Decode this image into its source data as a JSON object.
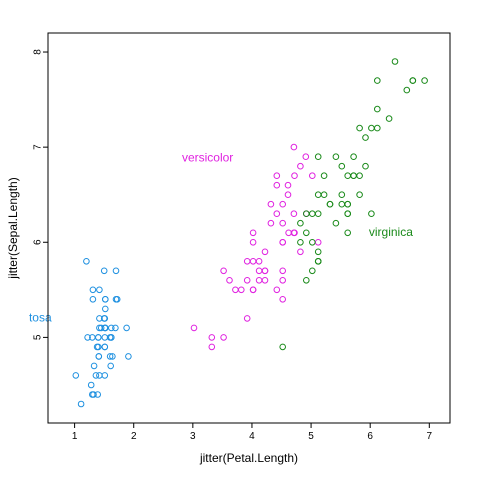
{
  "chart_data": {
    "type": "scatter",
    "title": "",
    "xlabel": "jitter(Petal.Length)",
    "ylabel": "jitter(Sepal.Length)",
    "xlim": [
      0.55,
      7.35
    ],
    "ylim": [
      4.1,
      8.2
    ],
    "xticks": [
      1,
      2,
      3,
      4,
      5,
      6,
      7
    ],
    "yticks": [
      5,
      6,
      7,
      8
    ],
    "grid": false,
    "legend": "none",
    "series": [
      {
        "color": "#1e90e0",
        "x": [
          1.42,
          1.38,
          1.33,
          1.51,
          1.4,
          1.72,
          1.36,
          1.51,
          1.39,
          1.51,
          1.52,
          1.64,
          1.41,
          1.11,
          1.2,
          1.5,
          1.31,
          1.45,
          1.7,
          1.52,
          1.7,
          1.51,
          1.02,
          1.69,
          1.91,
          1.6,
          1.62,
          1.5,
          1.42,
          1.61,
          1.6,
          1.52,
          1.51,
          1.42,
          1.51,
          1.22,
          1.31,
          1.4,
          1.3,
          1.52,
          1.3,
          1.28,
          1.32,
          1.62,
          1.88,
          1.41,
          1.62,
          1.42,
          1.52,
          1.4
        ],
        "y": [
          5.1,
          4.9,
          4.7,
          4.6,
          5.0,
          5.4,
          4.6,
          5.0,
          4.4,
          4.9,
          5.4,
          4.8,
          4.8,
          4.3,
          5.8,
          5.7,
          5.4,
          5.1,
          5.7,
          5.1,
          5.4,
          5.1,
          4.6,
          5.1,
          4.8,
          5.0,
          5.0,
          5.2,
          5.2,
          4.7,
          4.8,
          5.4,
          5.2,
          5.5,
          4.9,
          5.0,
          5.5,
          4.9,
          4.4,
          5.1,
          5.0,
          4.5,
          4.4,
          5.0,
          5.1,
          4.8,
          5.1,
          4.6,
          5.3,
          5.0
        ]
      },
      {
        "color": "#e022e0",
        "x": [
          4.71,
          4.52,
          4.91,
          4.02,
          4.61,
          4.52,
          4.71,
          3.32,
          4.61,
          3.92,
          3.52,
          4.22,
          4.02,
          4.71,
          3.62,
          4.42,
          4.52,
          4.12,
          4.52,
          3.92,
          4.82,
          4.02,
          4.92,
          4.72,
          4.32,
          4.42,
          4.82,
          5.02,
          4.52,
          3.52,
          3.82,
          3.72,
          3.92,
          5.12,
          4.52,
          4.52,
          4.72,
          4.42,
          4.12,
          4.02,
          4.42,
          4.62,
          4.02,
          3.32,
          4.22,
          4.22,
          4.22,
          4.32,
          3.02,
          4.12
        ],
        "y": [
          7.0,
          6.4,
          6.9,
          5.5,
          6.5,
          5.7,
          6.3,
          4.9,
          6.6,
          5.2,
          5.0,
          5.9,
          6.0,
          6.1,
          5.6,
          6.7,
          5.6,
          5.8,
          6.2,
          5.6,
          5.9,
          6.1,
          6.3,
          6.1,
          6.4,
          6.6,
          6.8,
          6.7,
          6.0,
          5.7,
          5.5,
          5.5,
          5.8,
          6.0,
          5.4,
          6.0,
          6.7,
          6.3,
          5.6,
          5.5,
          5.5,
          6.1,
          5.8,
          5.0,
          5.6,
          5.7,
          5.7,
          6.2,
          5.1,
          5.7
        ]
      },
      {
        "color": "#1a8a1a",
        "x": [
          6.02,
          5.12,
          5.92,
          5.62,
          5.82,
          6.62,
          4.52,
          6.32,
          5.82,
          6.12,
          5.12,
          5.32,
          5.52,
          5.02,
          5.12,
          5.32,
          5.52,
          6.72,
          6.92,
          5.02,
          5.72,
          4.92,
          6.72,
          4.92,
          5.72,
          6.02,
          4.82,
          4.92,
          5.62,
          5.82,
          6.12,
          6.42,
          5.62,
          5.12,
          5.62,
          6.12,
          5.62,
          5.52,
          4.82,
          5.42,
          5.62,
          5.12,
          5.12,
          5.92,
          5.72,
          5.22,
          5.02,
          5.22,
          5.42,
          5.12
        ],
        "y": [
          6.3,
          5.8,
          7.1,
          6.3,
          6.5,
          7.6,
          4.9,
          7.3,
          6.7,
          7.2,
          6.5,
          6.4,
          6.8,
          5.7,
          5.8,
          6.4,
          6.5,
          7.7,
          7.7,
          6.0,
          6.9,
          5.6,
          7.7,
          6.3,
          6.7,
          7.2,
          6.2,
          6.1,
          6.4,
          7.2,
          7.4,
          7.9,
          6.4,
          6.3,
          6.1,
          7.7,
          6.3,
          6.4,
          6.0,
          6.9,
          6.7,
          6.9,
          5.8,
          6.8,
          6.7,
          6.7,
          6.3,
          6.5,
          6.2,
          5.9
        ]
      }
    ],
    "annotations": [
      {
        "text": "tosa",
        "color": "#1e90e0",
        "x": 0.42,
        "y": 5.2
      },
      {
        "text": "versicolor",
        "color": "#e022e0",
        "x": 3.25,
        "y": 6.88
      },
      {
        "text": "virginica",
        "color": "#1a8a1a",
        "x": 6.35,
        "y": 6.1
      }
    ]
  }
}
